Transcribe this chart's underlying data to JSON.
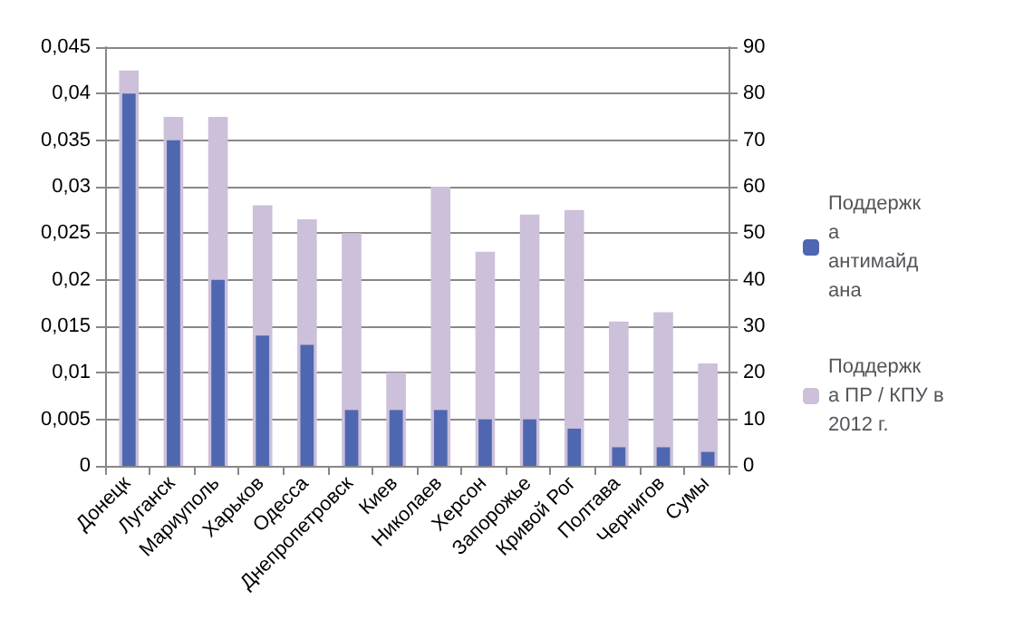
{
  "chart_data": {
    "type": "bar",
    "categories": [
      "Донецк",
      "Луганск",
      "Мариуполь",
      "Харьков",
      "Одесса",
      "Днепропетровск",
      "Киев",
      "Николаев",
      "Херсон",
      "Запорожье",
      "Кривой Рог",
      "Полтава",
      "Чернигов",
      "Сумы"
    ],
    "series": [
      {
        "name": "Поддержка ПР / КПУ в 2012 г.",
        "color": "#ccc0da",
        "axis": "y2",
        "values": [
          85,
          75,
          75,
          56,
          53,
          50,
          20,
          60,
          46,
          54,
          55,
          31,
          33,
          22
        ]
      },
      {
        "name": "Поддержка антимайдана",
        "color": "#4f67b0",
        "values": [
          0.04,
          0.035,
          0.02,
          0.014,
          0.013,
          0.006,
          0.006,
          0.006,
          0.005,
          0.005,
          0.004,
          0.002,
          0.002,
          0.0015
        ]
      }
    ],
    "ylim": [
      0,
      0.045
    ],
    "yticks": [
      "0",
      {
        "value": 0.005,
        "label": "0,005"
      },
      {
        "value": 0.01,
        "label": "0,01"
      },
      {
        "value": 0.015,
        "label": "0,015"
      },
      {
        "value": 0.02,
        "label": "0,02"
      },
      {
        "value": 0.025,
        "label": "0,025"
      },
      {
        "value": 0.03,
        "label": "0,03"
      },
      {
        "value": 0.035,
        "label": "0,035"
      },
      {
        "value": 0.04,
        "label": "0,04"
      },
      {
        "value": 0.045,
        "label": "0,045"
      }
    ],
    "y2lim": [
      0,
      90
    ],
    "y2ticks": [
      0,
      10,
      20,
      30,
      40,
      50,
      60,
      70,
      80,
      90
    ],
    "grid": "y",
    "legend": "right"
  }
}
